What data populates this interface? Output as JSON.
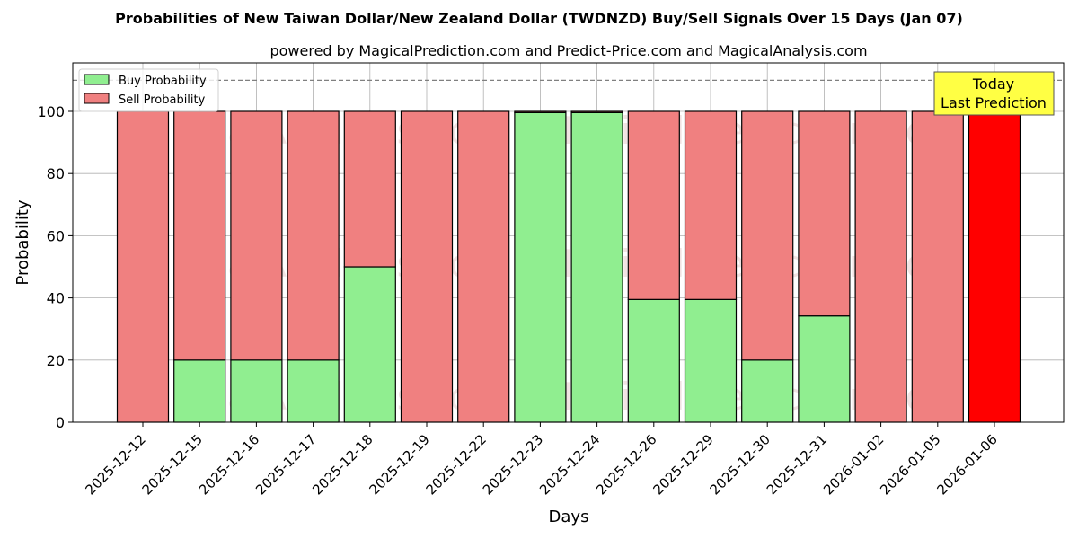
{
  "title": "Probabilities of New Taiwan Dollar/New Zealand Dollar (TWDNZD) Buy/Sell Signals Over 15 Days (Jan 07)",
  "subtitle": "powered by MagicalPrediction.com and Predict-Price.com and MagicalAnalysis.com",
  "xlabel": "Days",
  "ylabel": "Probability",
  "legend": {
    "buy": "Buy Probability",
    "sell": "Sell Probability"
  },
  "annotation": {
    "line1": "Today",
    "line2": "Last Prediction"
  },
  "watermarks": [
    "MagicalAnalysis.com",
    "MagicalPrediction.com"
  ],
  "colors": {
    "buy": "#90ee90",
    "sell": "#f08080",
    "today_sell": "#ff0000",
    "annotation_bg": "#ffff44"
  },
  "chart_data": {
    "type": "bar",
    "stacked": true,
    "title": "Probabilities of New Taiwan Dollar/New Zealand Dollar (TWDNZD) Buy/Sell Signals Over 15 Days (Jan 07)",
    "subtitle": "powered by MagicalPrediction.com and Predict-Price.com and MagicalAnalysis.com",
    "xlabel": "Days",
    "ylabel": "Probability",
    "ylim": [
      0,
      115
    ],
    "yticks": [
      0,
      20,
      40,
      60,
      80,
      100
    ],
    "grid": true,
    "legend_position": "upper left",
    "reference_line": 110,
    "categories": [
      "2025-12-12",
      "2025-12-15",
      "2025-12-16",
      "2025-12-17",
      "2025-12-18",
      "2025-12-19",
      "2025-12-22",
      "2025-12-23",
      "2025-12-24",
      "2025-12-26",
      "2025-12-29",
      "2025-12-30",
      "2025-12-31",
      "2026-01-02",
      "2026-01-05",
      "2026-01-06"
    ],
    "series": [
      {
        "name": "Buy Probability",
        "values": [
          0,
          20,
          20,
          20,
          50,
          0,
          0,
          99.6,
          99.6,
          39.5,
          39.5,
          20,
          34.2,
          0,
          0,
          0
        ]
      },
      {
        "name": "Sell Probability",
        "values": [
          100,
          80,
          80,
          80,
          50,
          100,
          100,
          0.4,
          0.4,
          60.5,
          60.5,
          80,
          65.8,
          100,
          100,
          100
        ]
      }
    ]
  }
}
